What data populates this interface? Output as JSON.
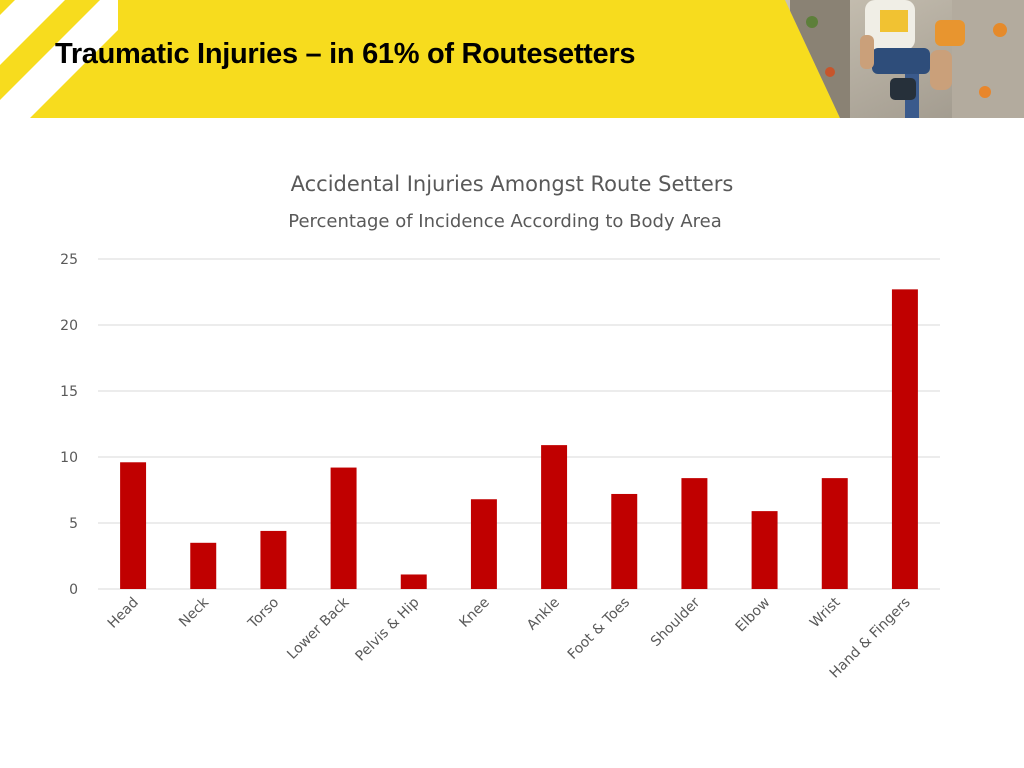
{
  "slide": {
    "title": "Traumatic Injuries – in 61% of Routesetters"
  },
  "colors": {
    "banner_yellow": "#f7dc1e",
    "bar": "#c00000",
    "gridline": "#d9d9d9",
    "text": "#595959"
  },
  "banner": {
    "photo": "climber-on-wall-photo",
    "decor": "white-diagonal-stripes"
  },
  "chart_data": {
    "type": "bar",
    "title": "Accidental Injuries Amongst Route Setters",
    "subtitle": "Percentage of Incidence According to Body Area",
    "xlabel": "",
    "ylabel": "",
    "categories": [
      "Head",
      "Neck",
      "Torso",
      "Lower Back",
      "Pelvis & Hip",
      "Knee",
      "Ankle",
      "Foot & Toes",
      "Shoulder",
      "Elbow",
      "Wrist",
      "Hand & Fingers"
    ],
    "values": [
      9.6,
      3.5,
      4.4,
      9.2,
      1.1,
      6.8,
      10.9,
      7.2,
      8.4,
      5.9,
      8.4,
      22.7
    ],
    "ylim": [
      0,
      25
    ],
    "yticks": [
      0,
      5,
      10,
      15,
      20,
      25
    ],
    "grid": true,
    "legend": "none"
  }
}
